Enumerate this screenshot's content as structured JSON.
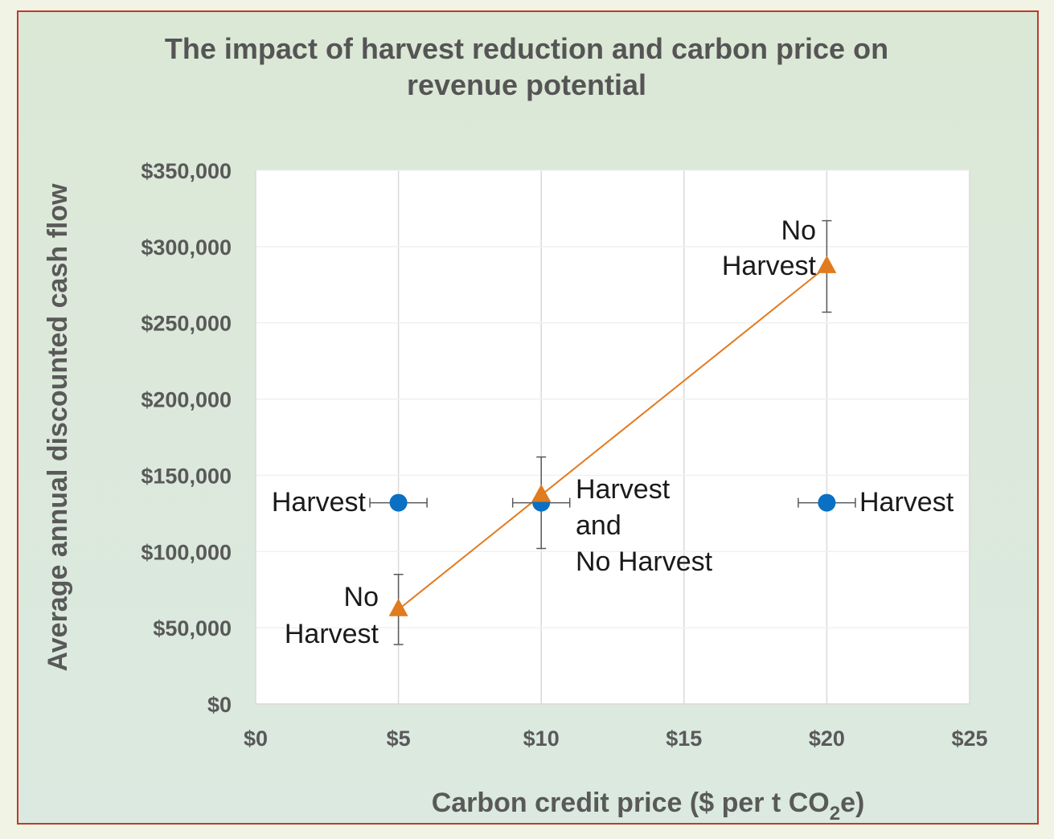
{
  "colors": {
    "page_bg": "#f1f3e4",
    "panel_bg_top": "#dce8d6",
    "panel_bg_bottom": "#dbe9e0",
    "border": "#c0392b",
    "plot_bg": "#ffffff",
    "grid": "#d9d9d9",
    "harvest_series": "#0a70c4",
    "no_harvest_series": "#e07b1f",
    "error_bar": "#595959"
  },
  "chart_data": {
    "type": "scatter",
    "title": [
      "The impact of harvest reduction and carbon price on",
      "revenue potential"
    ],
    "xlabel": {
      "main": "Carbon credit price ($ per t CO",
      "subscript": "2",
      "tail": "e)"
    },
    "ylabel": "Average annual discounted cash flow",
    "xlim": [
      0,
      25
    ],
    "ylim": [
      0,
      350000
    ],
    "x_ticks": [
      0,
      5,
      10,
      15,
      20,
      25
    ],
    "x_tick_labels": [
      "$0",
      "$5",
      "$10",
      "$15",
      "$20",
      "$25"
    ],
    "y_ticks": [
      0,
      50000,
      100000,
      150000,
      200000,
      250000,
      300000,
      350000
    ],
    "y_tick_labels": [
      "$0",
      "$50,000",
      "$100,000",
      "$150,000",
      "$200,000",
      "$250,000",
      "$300,000",
      "$350,000"
    ],
    "gridlines": {
      "vertical": true,
      "horizontal": true
    },
    "legend": "none",
    "series": [
      {
        "marker": "circle",
        "color": "#0a70c4",
        "line": false,
        "points": [
          {
            "x": 5,
            "y": 132000,
            "x_err": 1.0
          },
          {
            "x": 10,
            "y": 132000,
            "x_err": 1.0,
            "y_err": 30000
          },
          {
            "x": 20,
            "y": 132000,
            "x_err": 1.0
          }
        ]
      },
      {
        "marker": "triangle",
        "color": "#e07b1f",
        "line": true,
        "points": [
          {
            "x": 5,
            "y": 62000,
            "y_err_plus": 23000,
            "y_err_minus": 23000
          },
          {
            "x": 10,
            "y": 137000
          },
          {
            "x": 20,
            "y": 287000,
            "y_err_plus": 30000,
            "y_err_minus": 30000
          }
        ]
      }
    ],
    "point_labels": [
      {
        "lines": [
          "Harvest"
        ]
      },
      {
        "lines": [
          "Harvest",
          "and",
          "No Harvest"
        ]
      },
      {
        "lines": [
          "Harvest"
        ]
      },
      {
        "lines": [
          "No",
          "Harvest"
        ]
      },
      {
        "lines": [
          "No",
          "Harvest"
        ]
      }
    ]
  }
}
